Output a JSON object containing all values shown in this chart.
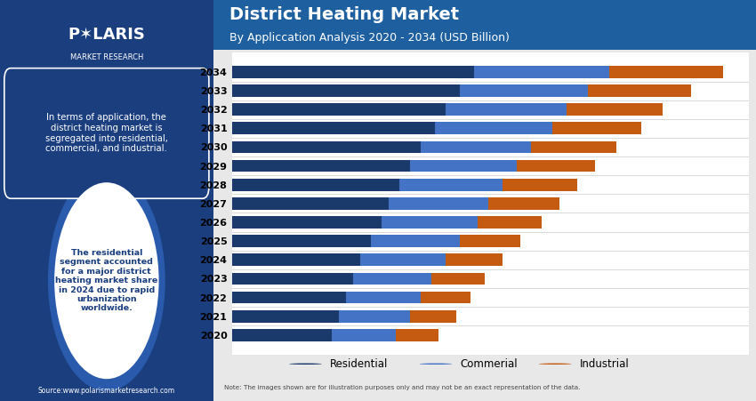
{
  "title": "District Heating Market",
  "subtitle": "By Appliccation Analysis 2020 - 2034 (USD Billion)",
  "years": [
    2020,
    2021,
    2022,
    2023,
    2024,
    2025,
    2026,
    2027,
    2028,
    2029,
    2030,
    2031,
    2032,
    2033,
    2034
  ],
  "residential": [
    28,
    30,
    32,
    34,
    36,
    39,
    42,
    44,
    47,
    50,
    53,
    57,
    60,
    64,
    68
  ],
  "commercial": [
    18,
    20,
    21,
    22,
    24,
    25,
    27,
    28,
    29,
    30,
    31,
    33,
    34,
    36,
    38
  ],
  "industrial": [
    12,
    13,
    14,
    15,
    16,
    17,
    18,
    20,
    21,
    22,
    24,
    25,
    27,
    29,
    32
  ],
  "color_residential": "#1a3a6b",
  "color_commercial": "#4472c4",
  "color_industrial": "#c55a11",
  "header_bg": "#1e5fa0",
  "left_panel_bg": "#1a3e7e",
  "chart_bg": "#ffffff",
  "source_text": "Source:www.polarismarketresearch.com",
  "note_text": "Note: The images shown are for illustration purposes only and may not be an exact representation of the data.",
  "legend_residential": "Residential",
  "legend_commercial": "Commerial",
  "legend_industrial": "Industrial",
  "box_text": "In terms of application, the\ndistrict heating market is\nsegregated into residential,\ncommercial, and industrial.",
  "circle_text": "The residential\nsegment accounted\nfor a major district\nheating market share\nin 2024 due to rapid\nurbanization\nworldwide."
}
